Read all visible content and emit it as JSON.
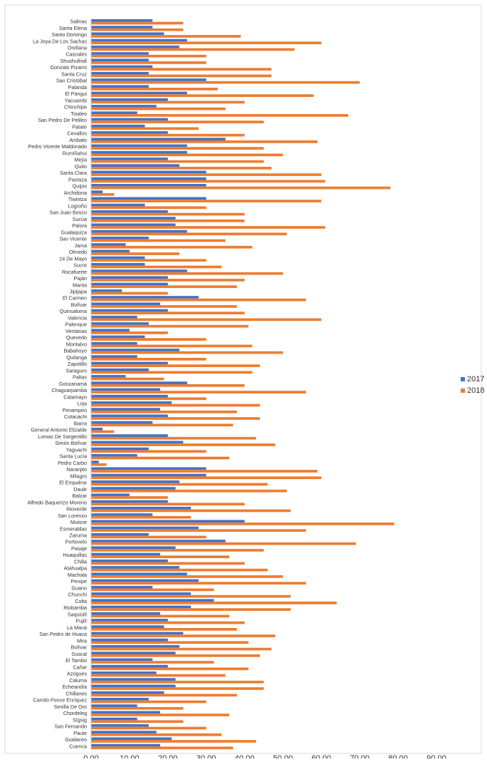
{
  "chart_data": {
    "type": "bar",
    "orientation": "horizontal",
    "categories": [
      "Salinas",
      "Santa Elena",
      "Santo Domingo",
      "La Joya De Los Sachas",
      "Orellana",
      "Cascales",
      "Shushufindi",
      "Gonzalo Pizarro",
      "Santa Cruz",
      "San Cristóbal",
      "Palanda",
      "El Pangui",
      "Yacuambi",
      "Chinchipe",
      "Tisaleo",
      "San Pedro De Pelileo",
      "Patate",
      "Cevallos",
      "Ambato",
      "Pedro Vicente Maldonado",
      "Rumiñahui",
      "Mejía",
      "Quito",
      "Santa Clara",
      "Pastaza",
      "Quijos",
      "Archidona",
      "Tiwintza",
      "Logroño",
      "San Juan Bosco",
      "Sucúa",
      "Palora",
      "Gualaquiza",
      "San Vicente",
      "Jama",
      "Olmedo",
      "24 De Mayo",
      "Sucre",
      "Rocafuerte",
      "Paján",
      "Manta",
      "Jipijapa",
      "El Carmen",
      "Bolívar",
      "Quinsaloma",
      "Valencia",
      "Palenque",
      "Ventanas",
      "Quevedo",
      "Montalvo",
      "Babahoyo",
      "Quilanga",
      "Zapotillo",
      "Saraguro",
      "Paltas",
      "Gonzanamá",
      "Chaguarpamba",
      "Catamayo",
      "Loja",
      "Pimampiro",
      "Cotacachi",
      "Ibarra",
      "General Antonio Elizalde",
      "Lomas De Sargentillo",
      "Simón Bolívar",
      "Yaguachi",
      "Santa Lucía",
      "Pedro Carbo",
      "Naranjito",
      "Milagro",
      "El Empalme",
      "Daule",
      "Balzar",
      "Alfredo Baquerizo Moreno",
      "Rioverde",
      "San Lorenzo",
      "Muisne",
      "Esmeraldas",
      "Zaruma",
      "Portovelo",
      "Pasaje",
      "Huaquillas",
      "Chilla",
      "Atahualpa",
      "Machala",
      "Penipe",
      "Guano",
      "Chunchi",
      "Colta",
      "Riobamba",
      "Saquisilí",
      "Pujilí",
      "La Maná",
      "San Pedro de Huaca",
      "Mira",
      "Bolívar",
      "Suscal",
      "El Tambo",
      "Cañar",
      "Azogues",
      "Caluma",
      "Echeandía",
      "Chillanes",
      "Camilo Ponce Enríquez",
      "Sevilla De Oro",
      "Chordeleg",
      "Sígsig",
      "San Fernando",
      "Paute",
      "Gualaceo",
      "Cuenca"
    ],
    "series": [
      {
        "name": "2017",
        "color": "#4472c4",
        "values": [
          16,
          16,
          19,
          25,
          23,
          15,
          15,
          16,
          15,
          30,
          15,
          25,
          20,
          17,
          12,
          20,
          14,
          20,
          35,
          25,
          25,
          20,
          23,
          30,
          30,
          30,
          3,
          30,
          14,
          20,
          22,
          22,
          25,
          15,
          9,
          10,
          14,
          14,
          25,
          20,
          20,
          8,
          28,
          18,
          20,
          12,
          15,
          10,
          14,
          12,
          23,
          12,
          20,
          15,
          9,
          25,
          18,
          20,
          21,
          18,
          20,
          16,
          3,
          20,
          24,
          15,
          12,
          2,
          30,
          30,
          23,
          22,
          10,
          20,
          26,
          16,
          40,
          28,
          15,
          35,
          22,
          18,
          20,
          23,
          25,
          28,
          16,
          26,
          32,
          26,
          18,
          20,
          19,
          24,
          20,
          23,
          22,
          16,
          20,
          17,
          22,
          22,
          19,
          15,
          12,
          18,
          12,
          15,
          17,
          21,
          18
        ]
      },
      {
        "name": "2018",
        "color": "#ed7d31",
        "values": [
          24,
          24,
          39,
          60,
          53,
          30,
          30,
          47,
          47,
          70,
          33,
          58,
          40,
          35,
          67,
          45,
          28,
          40,
          59,
          45,
          50,
          45,
          47,
          60,
          61,
          78,
          6,
          60,
          30,
          40,
          40,
          61,
          51,
          35,
          42,
          23,
          30,
          34,
          50,
          40,
          38,
          20,
          56,
          38,
          40,
          60,
          41,
          20,
          30,
          42,
          50,
          30,
          44,
          42,
          19,
          40,
          56,
          30,
          44,
          38,
          44,
          37,
          6,
          43,
          48,
          30,
          36,
          4,
          59,
          60,
          46,
          51,
          20,
          40,
          52,
          26,
          79,
          56,
          30,
          69,
          45,
          36,
          40,
          46,
          50,
          56,
          32,
          52,
          64,
          52,
          36,
          40,
          38,
          48,
          41,
          47,
          44,
          32,
          41,
          35,
          45,
          45,
          38,
          30,
          24,
          36,
          24,
          30,
          34,
          43,
          37
        ]
      }
    ],
    "xlim": [
      0,
      90
    ],
    "xticks": [
      {
        "value": 0,
        "label": "0,00"
      },
      {
        "value": 10,
        "label": "10,00"
      },
      {
        "value": 20,
        "label": "20,00"
      },
      {
        "value": 30,
        "label": "30,00"
      },
      {
        "value": 40,
        "label": "40,00"
      },
      {
        "value": 50,
        "label": "50,00"
      },
      {
        "value": 60,
        "label": "60,00"
      },
      {
        "value": 70,
        "label": "70,00"
      },
      {
        "value": 80,
        "label": "80,00"
      },
      {
        "value": 90,
        "label": "90,00"
      }
    ],
    "grid": false,
    "legend": "right"
  }
}
